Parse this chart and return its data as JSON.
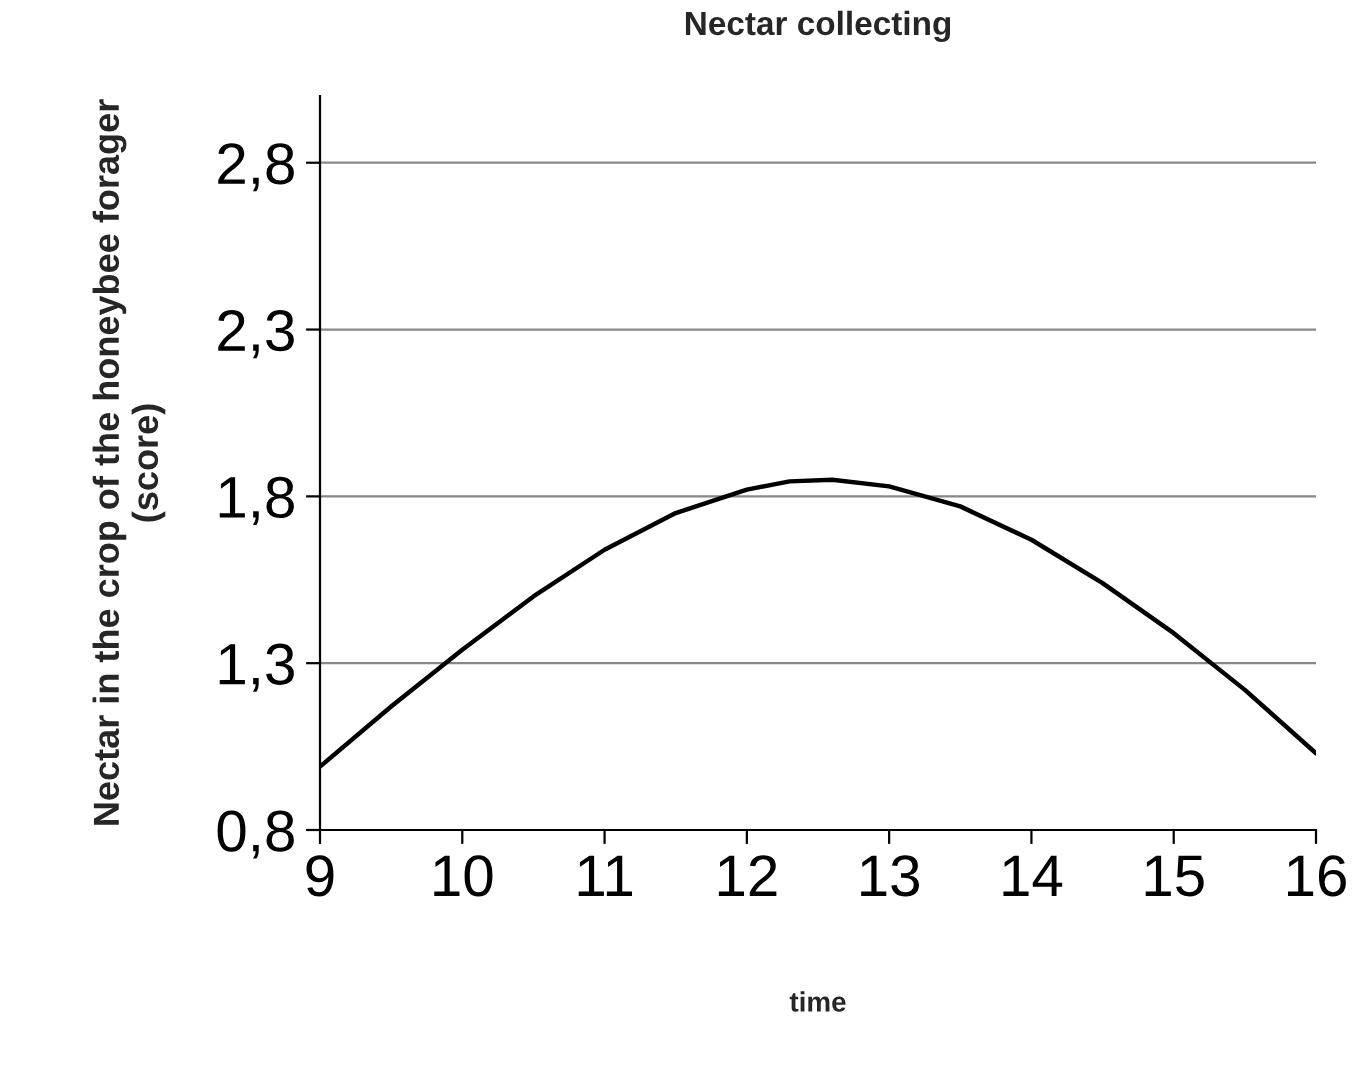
{
  "chart_data": {
    "type": "line",
    "title": "Nectar collecting",
    "xlabel": "time",
    "ylabel": "Nectar in the crop of the honeybee forager\n(score)",
    "x": [
      9,
      9.5,
      10,
      10.5,
      11,
      11.5,
      12,
      12.3,
      12.6,
      13,
      13.5,
      14,
      14.5,
      15,
      15.5,
      16
    ],
    "series": [
      {
        "color": "#000000",
        "values": [
          0.99,
          1.17,
          1.34,
          1.5,
          1.64,
          1.75,
          1.82,
          1.845,
          1.85,
          1.83,
          1.77,
          1.67,
          1.54,
          1.39,
          1.22,
          1.03
        ]
      }
    ],
    "xlim": [
      9,
      16
    ],
    "xticks": [
      9,
      10,
      11,
      12,
      13,
      14,
      15,
      16
    ],
    "ylim": [
      0.8,
      3.0
    ],
    "yticks": [
      {
        "value": 0.8,
        "label": "0,8"
      },
      {
        "value": 1.3,
        "label": "1,3"
      },
      {
        "value": 1.8,
        "label": "1,8"
      },
      {
        "value": 2.3,
        "label": "2,3"
      },
      {
        "value": 2.8,
        "label": "2,8"
      }
    ],
    "grid": "y",
    "marker": "none",
    "line_style": "solid"
  }
}
